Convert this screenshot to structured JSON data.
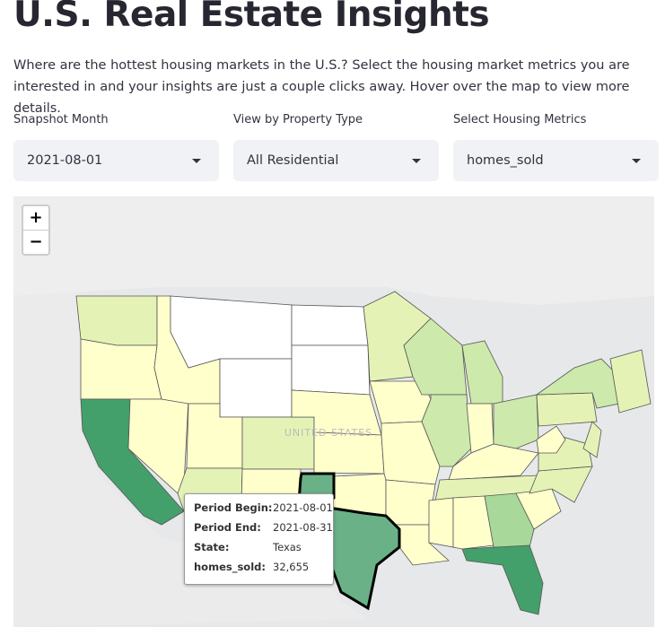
{
  "header": {
    "title": "U.S. Real Estate Insights",
    "description": "Where are the hottest housing markets in the U.S.? Select the housing market metrics you are interested in and your insights are just a couple clicks away. Hover over the map to view more details."
  },
  "controls": [
    {
      "label": "Snapshot Month",
      "value": "2021-08-01"
    },
    {
      "label": "View by Property Type",
      "value": "All Residential"
    },
    {
      "label": "Select Housing Metrics",
      "value": "homes_sold"
    }
  ],
  "map": {
    "zoom_in": "+",
    "zoom_out": "−",
    "country_label": "UNITED STATES",
    "tooltip": {
      "rows": [
        [
          "Period Begin:",
          "2021-08-01"
        ],
        [
          "Period End:",
          "2021-08-31"
        ],
        [
          "State:",
          "Texas"
        ],
        [
          "homes_sold:",
          "32,655"
        ]
      ]
    }
  }
}
